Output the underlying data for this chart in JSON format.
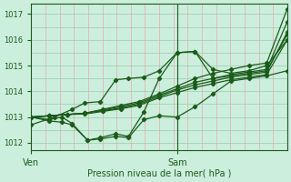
{
  "xlabel": "Pression niveau de la mer( hPa )",
  "ylim": [
    1011.7,
    1017.4
  ],
  "xlim": [
    0,
    1
  ],
  "yticks": [
    1012,
    1013,
    1014,
    1015,
    1016,
    1017
  ],
  "xtick_positions": [
    0.0,
    0.57
  ],
  "xtick_labels": [
    "Ven",
    "Sam"
  ],
  "vline_x": 0.57,
  "bg_color": "#cceedd",
  "line_color": "#1a5c1a",
  "grid_color_v": "#e8aaaa",
  "grid_color_h": "#99ccaa",
  "series": [
    {
      "x": [
        0.0,
        0.07,
        0.14,
        0.21,
        0.28,
        0.35,
        0.42,
        0.5,
        0.57,
        0.64,
        0.71,
        0.78,
        0.85,
        0.92,
        1.0
      ],
      "y": [
        1013.0,
        1013.05,
        1013.1,
        1013.15,
        1013.3,
        1013.45,
        1013.6,
        1013.9,
        1014.2,
        1014.5,
        1014.7,
        1014.85,
        1015.0,
        1015.1,
        1017.2
      ]
    },
    {
      "x": [
        0.0,
        0.07,
        0.14,
        0.21,
        0.28,
        0.35,
        0.42,
        0.5,
        0.57,
        0.64,
        0.71,
        0.78,
        0.85,
        0.92,
        1.0
      ],
      "y": [
        1013.0,
        1013.05,
        1013.1,
        1013.15,
        1013.28,
        1013.4,
        1013.55,
        1013.85,
        1014.1,
        1014.35,
        1014.5,
        1014.65,
        1014.75,
        1014.85,
        1016.7
      ]
    },
    {
      "x": [
        0.0,
        0.07,
        0.14,
        0.21,
        0.28,
        0.35,
        0.42,
        0.5,
        0.57,
        0.64,
        0.71,
        0.78,
        0.85,
        0.92,
        1.0
      ],
      "y": [
        1013.0,
        1013.05,
        1013.1,
        1013.15,
        1013.25,
        1013.35,
        1013.5,
        1013.8,
        1014.05,
        1014.25,
        1014.4,
        1014.55,
        1014.65,
        1014.75,
        1016.3
      ]
    },
    {
      "x": [
        0.0,
        0.07,
        0.14,
        0.21,
        0.28,
        0.35,
        0.42,
        0.5,
        0.57,
        0.64,
        0.71,
        0.78,
        0.85,
        0.92,
        1.0
      ],
      "y": [
        1013.0,
        1013.05,
        1013.1,
        1013.12,
        1013.22,
        1013.32,
        1013.45,
        1013.75,
        1013.95,
        1014.15,
        1014.3,
        1014.45,
        1014.55,
        1014.65,
        1016.0
      ]
    },
    {
      "x": [
        0.0,
        0.09,
        0.16,
        0.21,
        0.27,
        0.33,
        0.38,
        0.44,
        0.5,
        0.57,
        0.64,
        0.71,
        0.78,
        0.85,
        0.92,
        1.0
      ],
      "y": [
        1012.7,
        1013.0,
        1013.3,
        1013.55,
        1013.6,
        1014.45,
        1014.5,
        1014.55,
        1014.8,
        1015.5,
        1015.55,
        1014.85,
        1014.7,
        1014.8,
        1015.0,
        1016.0
      ]
    },
    {
      "x": [
        0.0,
        0.07,
        0.12,
        0.16,
        0.22,
        0.27,
        0.33,
        0.38,
        0.44,
        0.5,
        0.57,
        0.64,
        0.71,
        0.78,
        0.85,
        0.92,
        1.0
      ],
      "y": [
        1013.0,
        1012.85,
        1012.8,
        1012.7,
        1012.1,
        1012.15,
        1012.25,
        1012.2,
        1012.9,
        1013.05,
        1013.0,
        1013.4,
        1013.9,
        1014.4,
        1014.5,
        1014.6,
        1014.8
      ]
    },
    {
      "x": [
        0.0,
        0.07,
        0.12,
        0.16,
        0.22,
        0.27,
        0.33,
        0.38,
        0.44,
        0.5,
        0.57,
        0.64,
        0.71,
        0.78,
        0.85,
        0.92,
        1.0
      ],
      "y": [
        1013.0,
        1012.9,
        1013.0,
        1012.75,
        1012.1,
        1012.2,
        1012.35,
        1012.25,
        1013.2,
        1014.5,
        1015.5,
        1015.55,
        1014.5,
        1014.6,
        1014.7,
        1014.8,
        1016.2
      ]
    }
  ],
  "marker": "D",
  "markersize": 2.2,
  "linewidth": 0.9
}
